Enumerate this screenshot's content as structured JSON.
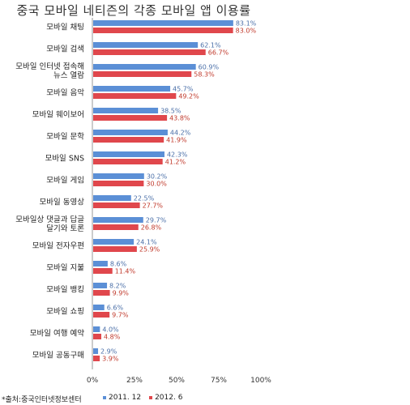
{
  "chart_data": {
    "type": "bar",
    "orientation": "horizontal",
    "title": "중국 모바일 네티즌의 각종 모바일 앱 이용률",
    "categories": [
      [
        "모바일 채팅"
      ],
      [
        "모바일 검색"
      ],
      [
        "모바일 인터넷 접속해",
        "뉴스 열람"
      ],
      [
        "모바일 음악"
      ],
      [
        "모바일 웨이보어"
      ],
      [
        "모바일 문학"
      ],
      [
        "모바일 SNS"
      ],
      [
        "모바일 게임"
      ],
      [
        "모바일 동영상"
      ],
      [
        "모바일상 댓글과 답글",
        "달기와 토론"
      ],
      [
        "모바일 전자우편"
      ],
      [
        "모바일 지불"
      ],
      [
        "모바일 뱅킹"
      ],
      [
        "모바일 쇼핑"
      ],
      [
        "모바일 여행 예약"
      ],
      [
        "모바일 공동구매"
      ]
    ],
    "series": [
      {
        "name": "2011. 12",
        "color": "#5b8fd6",
        "label_color": "#4a6fa8",
        "values": [
          83.1,
          62.1,
          60.9,
          45.7,
          38.5,
          44.2,
          42.3,
          30.2,
          22.5,
          29.7,
          24.1,
          8.6,
          8.2,
          6.6,
          4.0,
          2.9
        ],
        "labels": [
          "83.1%",
          "62.1%",
          "60.9%",
          "45.7%",
          "38.5%",
          "44.2%",
          "42.3%",
          "30.2%",
          "22.5%",
          "29.7%",
          "24.1%",
          "8.6%",
          "8.2%",
          "6.6%",
          "4.0%",
          "2.9%"
        ]
      },
      {
        "name": "2012. 6",
        "color": "#e0474c",
        "label_color": "#c0392b",
        "values": [
          83.0,
          66.7,
          58.3,
          49.2,
          43.8,
          41.9,
          41.2,
          30.0,
          27.7,
          26.8,
          25.9,
          11.4,
          9.9,
          9.7,
          4.8,
          3.9
        ],
        "labels": [
          "83.0%",
          "66.7%",
          "58.3%",
          "49.2%",
          "43.8%",
          "41.9%",
          "41.2%",
          "30.0%",
          "27.7%",
          "26.8%",
          "25.9%",
          "11.4%",
          "9.9%",
          "9.7%",
          "4.8%",
          "3.9%"
        ]
      }
    ],
    "xlim": [
      0,
      100
    ],
    "xticks": [
      0,
      25,
      50,
      75,
      100
    ],
    "xtick_labels": [
      "0%",
      "25%",
      "50%",
      "75%",
      "100%"
    ],
    "legend_position": "bottom"
  },
  "footer": {
    "source": "*출처:중국인터넷정보센터"
  }
}
